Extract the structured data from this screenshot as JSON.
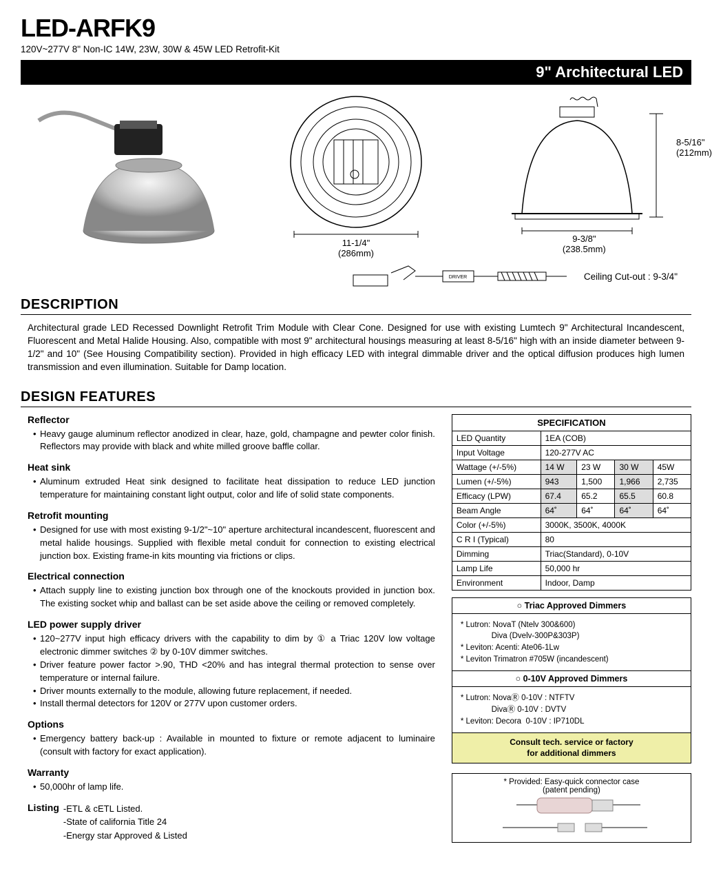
{
  "header": {
    "title": "LED-ARFK9",
    "subtitle": "120V~277V  8\" Non-IC 14W, 23W, 30W & 45W  LED Retrofit-Kit",
    "bar": "9\" Architectural LED"
  },
  "dims": {
    "bottom_w": "11-1/4\"",
    "bottom_w_mm": "(286mm)",
    "side_w": "9-3/8\"",
    "side_w_mm": "(238.5mm)",
    "height": "8-5/16\"",
    "height_mm": "(212mm)",
    "cutout_label": "Ceiling Cut-out : ",
    "cutout_val": "9-3/4\"",
    "driver_label": "DRIVER"
  },
  "desc": {
    "heading": "DESCRIPTION",
    "text": "Architectural grade LED Recessed Downlight Retrofit Trim Module with Clear Cone. Designed for use with existing Lumtech 9\" Architectural Incandescent, Fluorescent and Metal Halide Housing. Also, compatible with most 9\" architectural housings measuring at least 8-5/16\" high with an inside diameter between 9-1/2\" and 10\" (See Housing Compatibility section). Provided in high efficacy LED with integral dimmable driver and the optical diffusion produces high lumen transmission and even illumination. Suitable for Damp location."
  },
  "features": {
    "heading": "DESIGN FEATURES",
    "sections": [
      {
        "h": "Reflector",
        "items": [
          "Heavy gauge aluminum reflector anodized in clear, haze, gold, champagne and pewter color finish. Reflectors may provide with black and white milled groove baffle collar."
        ]
      },
      {
        "h": "Heat sink",
        "items": [
          "Aluminum extruded Heat sink designed to facilitate heat dissipation to reduce LED junction temperature for maintaining constant light output, color and life of solid state components."
        ]
      },
      {
        "h": "Retrofit mounting",
        "items": [
          "Designed for use with most existing 9-1/2\"~10\" aperture architectural incandescent, fluorescent and metal halide housings. Supplied with flexible metal conduit for connection to existing electrical junction box. Existing frame-in kits mounting via frictions or clips."
        ]
      },
      {
        "h": "Electrical connection",
        "items": [
          "Attach supply line to existing junction box through one of the knockouts provided in junction box. The existing socket whip and ballast can be set aside above the ceiling or removed completely."
        ]
      },
      {
        "h": "LED power supply driver",
        "items": [
          "120~277V input high efficacy drivers with the capability to dim by ① a Triac 120V low voltage electronic dimmer switches  ② by 0-10V dimmer switches.",
          "Driver feature power factor >.90, THD <20% and has integral thermal protection to sense over temperature or internal failure.",
          "Driver mounts externally to the module, allowing future replacement, if needed.",
          "Install thermal detectors for 120V or 277V upon customer orders."
        ]
      },
      {
        "h": "Options",
        "items": [
          "Emergency battery back-up : Available in mounted to fixture or remote adjacent to luminaire (consult with factory for exact application)."
        ]
      },
      {
        "h": "Warranty",
        "items": [
          "50,000hr of lamp life."
        ]
      }
    ],
    "listing_label": "Listing",
    "listing_items": [
      "-ETL & cETL Listed.",
      "-State of california Title 24",
      "-Energy star Approved & Listed"
    ]
  },
  "spec": {
    "heading": "SPECIFICATION",
    "rows": {
      "led_qty_l": "LED Quantity",
      "led_qty_v": "1EA (COB)",
      "volt_l": "Input Voltage",
      "volt_v": "120-277V AC",
      "watt_l": "Wattage (+/-5%)",
      "watt_v": [
        "14 W",
        "23 W",
        "30 W",
        "45W"
      ],
      "lumen_l": "Lumen (+/-5%)",
      "lumen_v": [
        "943",
        "1,500",
        "1,966",
        "2,735"
      ],
      "eff_l": "Efficacy  (LPW)",
      "eff_v": [
        "67.4",
        "65.2",
        "65.5",
        "60.8"
      ],
      "beam_l": "Beam Angle",
      "beam_v": [
        "64˚",
        "64˚",
        "64˚",
        "64˚"
      ],
      "color_l": "Color (+/-5%)",
      "color_v": "3000K, 3500K, 4000K",
      "cri_l": "C R I  (Typical)",
      "cri_v": "80",
      "dim_l": "Dimming",
      "dim_v": "Triac(Standard), 0-10V",
      "life_l": "Lamp Life",
      "life_v": "50,000 hr",
      "env_l": "Environment",
      "env_v": "Indoor, Damp"
    }
  },
  "dimmers": {
    "triac_h": "○ Triac Approved Dimmers",
    "triac": [
      "* Lutron: NovaT (Ntelv 300&600)",
      "              Diva (Dvelv-300P&303P)",
      "* Leviton: Acenti: Ate06-1Lw",
      "* Leviton Trimatron #705W (incandescent)"
    ],
    "zero_h": "○ 0-10V Approved Dimmers",
    "zero": [
      "* Lutron: NovaⓇ 0-10V : NTFTV",
      "              DivaⓇ 0-10V : DVTV",
      "* Leviton: Decora  0-10V : IP710DL"
    ],
    "warn1": "Consult tech. service or factory",
    "warn2": "for additional dimmers",
    "conn": "* Provided: Easy-quick connector case",
    "conn2": "(patent pending)"
  }
}
